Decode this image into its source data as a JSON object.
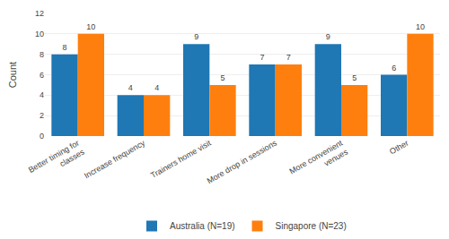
{
  "chart_data": {
    "type": "bar",
    "categories": [
      "Better timing for\nclasses",
      "Increase frequency",
      "Trainers home visit",
      "More drop in sessions",
      "More convenient\nvenues",
      "Other"
    ],
    "series": [
      {
        "name": "Australia (N=19)",
        "values": [
          8,
          4,
          9,
          7,
          9,
          6
        ]
      },
      {
        "name": "Singapore (N=23)",
        "values": [
          10,
          4,
          5,
          7,
          5,
          10
        ]
      }
    ],
    "ylabel": "Count",
    "ylim": [
      0,
      12
    ],
    "yticks": [
      0,
      2,
      4,
      6,
      8,
      10,
      12
    ],
    "grid": true,
    "legend": "bottom",
    "data_labels": true
  }
}
